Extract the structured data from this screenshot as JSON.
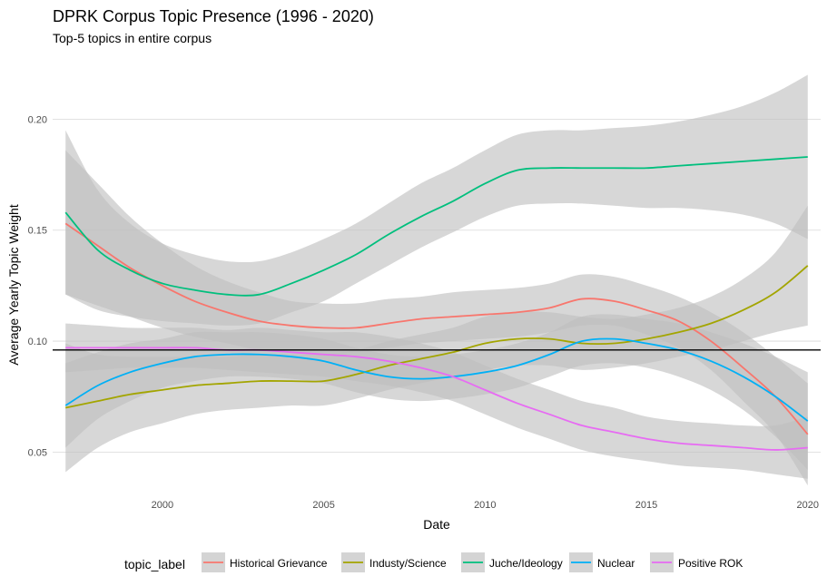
{
  "chart_data": {
    "type": "line",
    "title": "DPRK Corpus Topic Presence (1996 - 2020)",
    "subtitle": "Top-5 topics in entire corpus",
    "xlabel": "Date",
    "ylabel": "Average Yearly Topic Weight",
    "xlim": [
      1996.6,
      2020.4
    ],
    "ylim": [
      0.033,
      0.221
    ],
    "x_ticks": [
      2000,
      2005,
      2010,
      2015,
      2020
    ],
    "y_ticks": [
      0.05,
      0.1,
      0.15,
      0.2
    ],
    "y_tick_labels": [
      "0.05",
      "0.10",
      "0.15",
      "0.20"
    ],
    "grid": true,
    "legend_title": "topic_label",
    "legend_position": "bottom",
    "reference_line": {
      "y": 0.096,
      "color": "#000000"
    },
    "band_color": "#bebebe",
    "x": [
      1997,
      1998,
      1999,
      2000,
      2001,
      2002,
      2003,
      2004,
      2005,
      2006,
      2007,
      2008,
      2009,
      2010,
      2011,
      2012,
      2013,
      2014,
      2015,
      2016,
      2017,
      2018,
      2019,
      2020
    ],
    "series": [
      {
        "name": "Historical Grievance",
        "color": "#F8766D",
        "values": [
          0.153,
          0.143,
          0.133,
          0.125,
          0.118,
          0.113,
          0.109,
          0.107,
          0.106,
          0.106,
          0.108,
          0.11,
          0.111,
          0.112,
          0.113,
          0.115,
          0.119,
          0.118,
          0.114,
          0.109,
          0.1,
          0.088,
          0.075,
          0.058
        ],
        "lower": [
          0.121,
          0.116,
          0.111,
          0.106,
          0.102,
          0.099,
          0.096,
          0.095,
          0.094,
          0.095,
          0.097,
          0.099,
          0.1,
          0.101,
          0.102,
          0.104,
          0.107,
          0.107,
          0.103,
          0.097,
          0.087,
          0.073,
          0.058,
          0.035
        ],
        "upper": [
          0.186,
          0.171,
          0.156,
          0.144,
          0.134,
          0.127,
          0.122,
          0.118,
          0.117,
          0.117,
          0.119,
          0.12,
          0.122,
          0.123,
          0.124,
          0.126,
          0.13,
          0.129,
          0.125,
          0.12,
          0.113,
          0.104,
          0.093,
          0.081
        ]
      },
      {
        "name": "Industy/Science",
        "color": "#A3A500",
        "values": [
          0.07,
          0.073,
          0.076,
          0.078,
          0.08,
          0.081,
          0.082,
          0.082,
          0.082,
          0.085,
          0.089,
          0.092,
          0.095,
          0.099,
          0.101,
          0.101,
          0.099,
          0.099,
          0.101,
          0.104,
          0.108,
          0.114,
          0.122,
          0.134
        ],
        "lower": [
          0.041,
          0.052,
          0.059,
          0.063,
          0.067,
          0.069,
          0.07,
          0.071,
          0.071,
          0.074,
          0.078,
          0.081,
          0.084,
          0.087,
          0.089,
          0.089,
          0.087,
          0.088,
          0.09,
          0.093,
          0.096,
          0.1,
          0.104,
          0.107
        ],
        "upper": [
          0.099,
          0.094,
          0.093,
          0.093,
          0.093,
          0.093,
          0.094,
          0.094,
          0.094,
          0.096,
          0.1,
          0.103,
          0.106,
          0.111,
          0.113,
          0.113,
          0.111,
          0.11,
          0.112,
          0.115,
          0.12,
          0.128,
          0.14,
          0.161
        ]
      },
      {
        "name": "Juche/Ideology",
        "color": "#00BF7D",
        "values": [
          0.158,
          0.141,
          0.132,
          0.126,
          0.123,
          0.121,
          0.121,
          0.126,
          0.132,
          0.139,
          0.148,
          0.156,
          0.163,
          0.171,
          0.177,
          0.178,
          0.178,
          0.178,
          0.178,
          0.179,
          0.18,
          0.181,
          0.182,
          0.183
        ],
        "lower": [
          0.121,
          0.114,
          0.111,
          0.109,
          0.108,
          0.107,
          0.108,
          0.113,
          0.118,
          0.126,
          0.134,
          0.142,
          0.149,
          0.156,
          0.161,
          0.162,
          0.162,
          0.161,
          0.16,
          0.16,
          0.159,
          0.157,
          0.153,
          0.146
        ],
        "upper": [
          0.195,
          0.168,
          0.153,
          0.144,
          0.139,
          0.136,
          0.136,
          0.14,
          0.146,
          0.153,
          0.162,
          0.171,
          0.178,
          0.186,
          0.193,
          0.195,
          0.195,
          0.196,
          0.197,
          0.199,
          0.202,
          0.206,
          0.212,
          0.22
        ]
      },
      {
        "name": "Nuclear",
        "color": "#00B0F6",
        "values": [
          0.071,
          0.08,
          0.086,
          0.09,
          0.093,
          0.094,
          0.094,
          0.093,
          0.091,
          0.087,
          0.084,
          0.083,
          0.084,
          0.086,
          0.089,
          0.094,
          0.1,
          0.101,
          0.099,
          0.096,
          0.091,
          0.084,
          0.075,
          0.064
        ],
        "lower": [
          0.052,
          0.065,
          0.073,
          0.079,
          0.082,
          0.084,
          0.084,
          0.083,
          0.081,
          0.077,
          0.074,
          0.073,
          0.074,
          0.076,
          0.079,
          0.084,
          0.089,
          0.09,
          0.088,
          0.084,
          0.078,
          0.069,
          0.057,
          0.042
        ],
        "upper": [
          0.09,
          0.095,
          0.099,
          0.101,
          0.104,
          0.104,
          0.104,
          0.103,
          0.101,
          0.097,
          0.094,
          0.093,
          0.094,
          0.096,
          0.099,
          0.104,
          0.111,
          0.112,
          0.11,
          0.108,
          0.104,
          0.099,
          0.093,
          0.086
        ]
      },
      {
        "name": "Positive ROK",
        "color": "#E76BF3",
        "values": [
          0.097,
          0.097,
          0.097,
          0.097,
          0.097,
          0.096,
          0.096,
          0.095,
          0.094,
          0.093,
          0.091,
          0.088,
          0.084,
          0.078,
          0.072,
          0.067,
          0.062,
          0.059,
          0.056,
          0.054,
          0.053,
          0.052,
          0.051,
          0.052
        ],
        "lower": [
          0.086,
          0.087,
          0.088,
          0.088,
          0.088,
          0.087,
          0.086,
          0.085,
          0.084,
          0.082,
          0.08,
          0.077,
          0.073,
          0.067,
          0.061,
          0.056,
          0.051,
          0.048,
          0.046,
          0.044,
          0.043,
          0.042,
          0.04,
          0.038
        ],
        "upper": [
          0.108,
          0.107,
          0.106,
          0.106,
          0.106,
          0.105,
          0.106,
          0.105,
          0.104,
          0.104,
          0.102,
          0.099,
          0.095,
          0.089,
          0.083,
          0.078,
          0.073,
          0.07,
          0.066,
          0.064,
          0.063,
          0.062,
          0.062,
          0.066
        ]
      }
    ]
  }
}
